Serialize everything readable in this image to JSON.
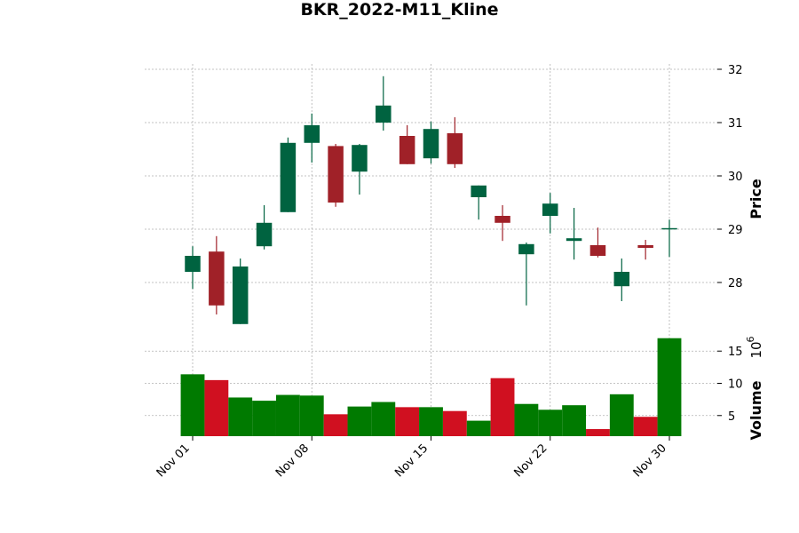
{
  "chart_data": {
    "type": "candlestick",
    "title": "BKR_2022-M11_Kline",
    "price_label": "Price",
    "volume_label": "Volume",
    "volume_exponent_label": "10",
    "volume_exponent_power": "6",
    "dates": [
      "2022-11-01",
      "2022-11-02",
      "2022-11-03",
      "2022-11-04",
      "2022-11-07",
      "2022-11-08",
      "2022-11-09",
      "2022-11-10",
      "2022-11-11",
      "2022-11-14",
      "2022-11-15",
      "2022-11-16",
      "2022-11-17",
      "2022-11-18",
      "2022-11-21",
      "2022-11-22",
      "2022-11-23",
      "2022-11-25",
      "2022-11-28",
      "2022-11-29",
      "2022-11-30"
    ],
    "open": [
      28.2,
      28.58,
      27.22,
      28.68,
      29.32,
      30.62,
      30.56,
      30.08,
      31.0,
      30.75,
      30.33,
      30.8,
      29.6,
      29.25,
      28.53,
      29.25,
      28.78,
      28.7,
      27.93,
      28.7,
      29.0
    ],
    "high": [
      28.68,
      28.87,
      28.45,
      29.45,
      30.72,
      31.17,
      30.6,
      30.6,
      31.87,
      30.95,
      31.02,
      31.1,
      29.82,
      29.45,
      28.75,
      29.68,
      29.4,
      29.03,
      28.45,
      28.8,
      29.18
    ],
    "low": [
      27.88,
      27.4,
      27.22,
      28.62,
      29.32,
      30.25,
      29.42,
      29.65,
      30.85,
      30.22,
      30.23,
      30.15,
      29.18,
      28.78,
      27.57,
      28.92,
      28.43,
      28.47,
      27.65,
      28.43,
      28.48
    ],
    "close": [
      28.5,
      27.57,
      28.3,
      29.12,
      30.62,
      30.95,
      29.5,
      30.58,
      31.32,
      30.22,
      30.88,
      30.22,
      29.82,
      29.12,
      28.72,
      29.48,
      28.83,
      28.5,
      28.2,
      28.65,
      29.02
    ],
    "volume_millions": [
      11.4,
      10.5,
      7.8,
      7.3,
      8.2,
      8.1,
      5.2,
      6.4,
      7.1,
      6.3,
      6.3,
      5.7,
      4.2,
      10.8,
      6.8,
      5.9,
      6.6,
      2.9,
      8.3,
      4.8,
      17.0
    ],
    "price_ylim": [
      27.1,
      32.1
    ],
    "price_yticks": [
      "28",
      "29",
      "30",
      "31",
      "32"
    ],
    "volume_ylim": [
      1.8,
      18.2
    ],
    "volume_yticks": [
      "5",
      "10",
      "15"
    ],
    "xticks": [
      {
        "label": "Nov 01",
        "index": 0
      },
      {
        "label": "Nov 08",
        "index": 5
      },
      {
        "label": "Nov 15",
        "index": 10
      },
      {
        "label": "Nov 22",
        "index": 15
      },
      {
        "label": "Nov 30",
        "index": 20
      }
    ],
    "colors": {
      "up_candle": "#006340",
      "down_candle": "#a02128",
      "up_volume": "#007a00",
      "down_volume": "#d01020",
      "grid": "#b0b0b0"
    }
  }
}
